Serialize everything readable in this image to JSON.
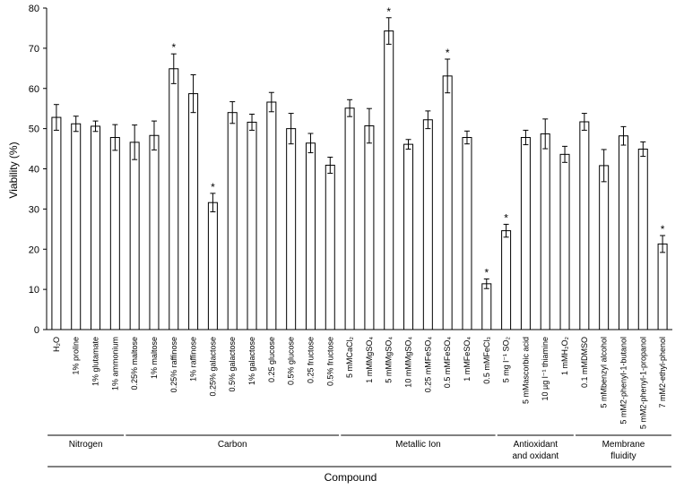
{
  "chart_data": {
    "type": "bar",
    "title": "",
    "ylabel": "Viability (%)",
    "xlabel": "Compound",
    "ylim": [
      0,
      80
    ],
    "yticks": [
      "0",
      "10",
      "20",
      "30",
      "40",
      "50",
      "60",
      "70",
      "80"
    ],
    "categories": [
      "H₂O",
      "1% proline",
      "1% glutamate",
      "1% ammonium",
      "0.25% maltose",
      "1% maltose",
      "0.25% raffinose",
      "1% raffinose",
      "0.25% galactose",
      "0.5% galactose",
      "1% galactose",
      "0.25 glucose",
      "0.5% glucose",
      "0.25 fructose",
      "0.5% fructose",
      "5 mMCaCl₂",
      "1 mMMgSO₄",
      "5 mMMgSO₄",
      "10 mMMgSO₄",
      "0.25 mMFeSO₄",
      "0.5 mMFeSO₄",
      "1 mMFeSO₄",
      "0.5 mMFeCl₃",
      "5 mg l⁻¹ SO₂",
      "5 mMascorbic acid",
      "10 µg l⁻¹ thiamine",
      "1 mMH₂O₂",
      "0.1 mMDMSO",
      "5 mMbenzyl alcohol",
      "5 mM2-phenyl-1-butanol",
      "5 mM2-phenyl-1-propanol",
      "7 mM2-ethyl-phenol"
    ],
    "values": [
      52.8,
      51.2,
      50.6,
      47.8,
      46.6,
      48.3,
      64.9,
      58.7,
      31.6,
      54.0,
      51.6,
      56.6,
      50.0,
      46.4,
      40.9,
      55.1,
      50.7,
      74.3,
      46.1,
      52.2,
      63.1,
      47.8,
      11.4,
      24.6,
      47.8,
      48.7,
      43.6,
      51.7,
      40.8,
      48.2,
      44.9,
      21.3
    ],
    "errors": [
      3.2,
      1.9,
      1.3,
      3.2,
      4.3,
      3.6,
      3.7,
      4.7,
      2.3,
      2.7,
      2.0,
      2.4,
      3.8,
      2.4,
      2.0,
      2.1,
      4.3,
      3.3,
      1.2,
      2.2,
      4.2,
      1.6,
      1.2,
      1.6,
      1.8,
      3.7,
      2.0,
      2.1,
      4.0,
      2.3,
      1.8,
      2.1
    ],
    "significant": [
      6,
      8,
      17,
      20,
      22,
      23,
      31
    ],
    "significance_marker": "*",
    "groups": [
      {
        "label": "Nitrogen",
        "lines": [
          "Nitrogen"
        ],
        "from": 0,
        "to": 3
      },
      {
        "label": "Carbon",
        "lines": [
          "Carbon"
        ],
        "from": 4,
        "to": 14
      },
      {
        "label": "Metallic Ion",
        "lines": [
          "Metallic  Ion"
        ],
        "from": 15,
        "to": 22
      },
      {
        "label": "Antioxidant and oxidant",
        "lines": [
          "Antioxidant",
          "and oxidant"
        ],
        "from": 23,
        "to": 26
      },
      {
        "label": "Membrane fluidity",
        "lines": [
          "Membrane",
          "fluidity"
        ],
        "from": 27,
        "to": 31
      }
    ],
    "bar_color": "#ffffff",
    "stroke_color": "#000000"
  }
}
